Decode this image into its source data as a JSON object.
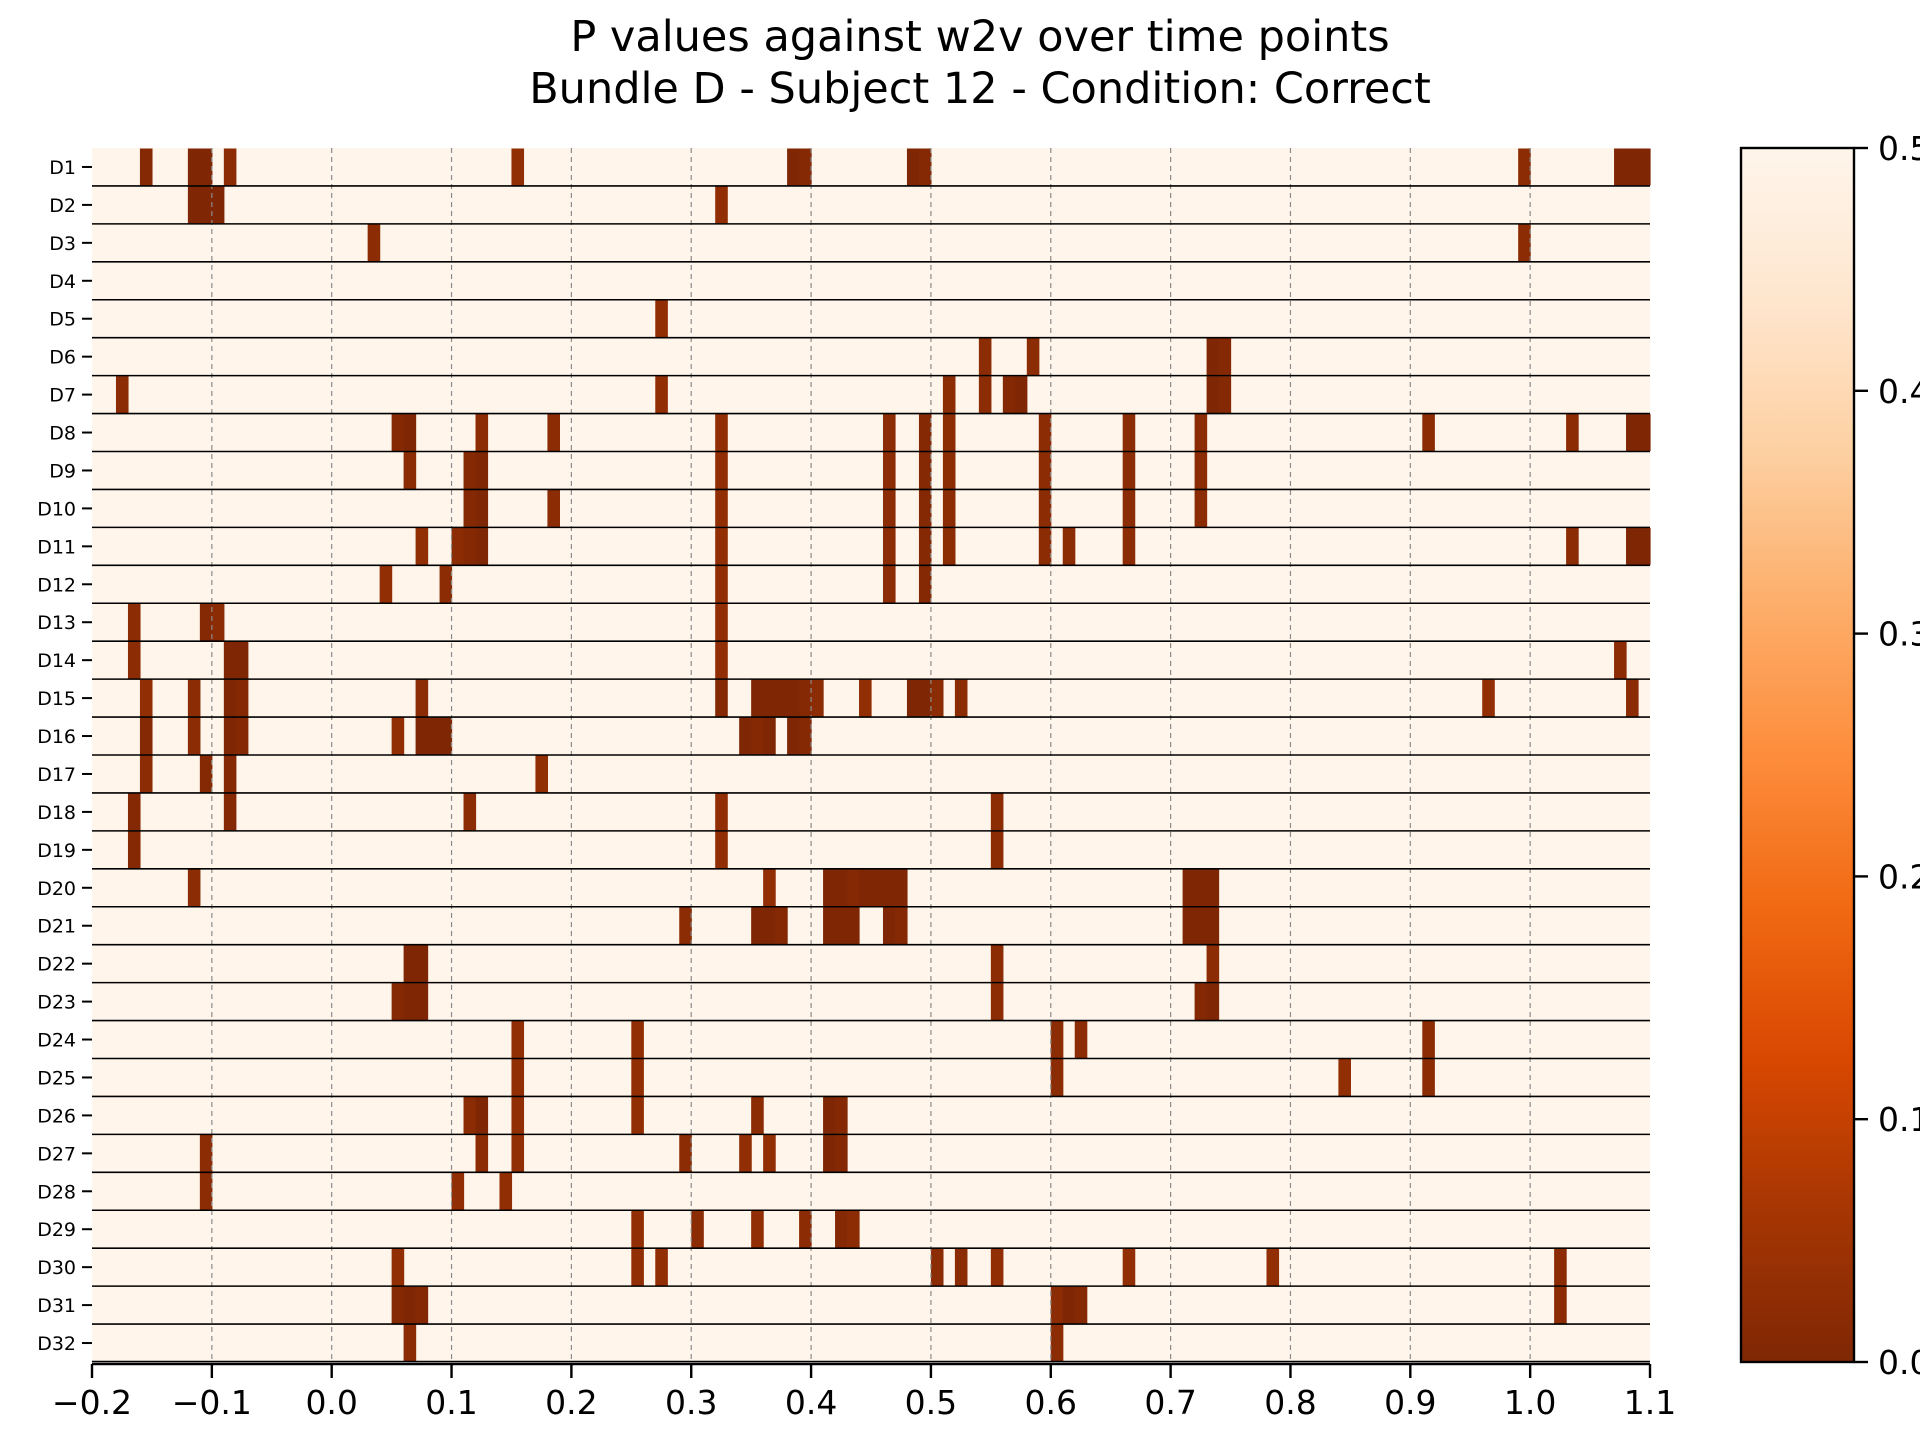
{
  "chart_data": {
    "type": "heatmap",
    "title": "P values against w2v over time points",
    "subtitle": "Bundle D - Subject 12 - Condition: Correct",
    "xlabel": "",
    "ylabel": "",
    "xlim": [
      -0.2,
      1.1
    ],
    "x_ticks": [
      "−0.2",
      "−0.1",
      "0.0",
      "0.1",
      "0.2",
      "0.3",
      "0.4",
      "0.5",
      "0.6",
      "0.7",
      "0.8",
      "0.9",
      "1.0",
      "1.1"
    ],
    "x_tick_values": [
      -0.2,
      -0.1,
      0.0,
      0.1,
      0.2,
      0.3,
      0.4,
      0.5,
      0.6,
      0.7,
      0.8,
      0.9,
      1.0,
      1.1
    ],
    "grid": "dashed vertical lines at x ticks",
    "colormap": {
      "name": "Oranges_r",
      "stops": [
        "#7f2704",
        "#a63603",
        "#d94801",
        "#f16913",
        "#fd8d3c",
        "#fdae6b",
        "#fdd0a2",
        "#fee6ce",
        "#fff5eb"
      ]
    },
    "background_value": 0.5,
    "colorbar": {
      "min": 0.0,
      "max": 0.5,
      "ticks": [
        "0.0",
        "0.1",
        "0.2",
        "0.3",
        "0.4",
        "0.5"
      ],
      "tick_values": [
        0.0,
        0.1,
        0.2,
        0.3,
        0.4,
        0.5
      ],
      "placement": "right"
    },
    "rows": [
      {
        "label": "D1",
        "cells": [
          [
            -0.16,
            0.01
          ],
          [
            -0.12,
            0.0
          ],
          [
            -0.11,
            0.0
          ],
          [
            -0.09,
            0.02
          ],
          [
            0.15,
            0.03
          ],
          [
            0.38,
            0.0
          ],
          [
            0.39,
            0.01
          ],
          [
            0.48,
            0.0
          ],
          [
            0.49,
            0.01
          ],
          [
            0.99,
            0.02
          ],
          [
            1.07,
            0.0
          ],
          [
            1.08,
            0.0
          ],
          [
            1.09,
            0.0
          ]
        ]
      },
      {
        "label": "D2",
        "cells": [
          [
            -0.12,
            0.0
          ],
          [
            -0.11,
            0.0
          ],
          [
            -0.1,
            0.0
          ],
          [
            0.32,
            0.03
          ]
        ]
      },
      {
        "label": "D3",
        "cells": [
          [
            0.03,
            0.02
          ],
          [
            0.99,
            0.02
          ]
        ]
      },
      {
        "label": "D4",
        "cells": []
      },
      {
        "label": "D5",
        "cells": [
          [
            0.27,
            0.03
          ]
        ]
      },
      {
        "label": "D6",
        "cells": [
          [
            0.54,
            0.02
          ],
          [
            0.58,
            0.02
          ],
          [
            0.73,
            0.0
          ],
          [
            0.74,
            0.01
          ]
        ]
      },
      {
        "label": "D7",
        "cells": [
          [
            -0.18,
            0.02
          ],
          [
            0.27,
            0.03
          ],
          [
            0.51,
            0.02
          ],
          [
            0.54,
            0.02
          ],
          [
            0.56,
            0.01
          ],
          [
            0.57,
            0.0
          ],
          [
            0.73,
            0.0
          ],
          [
            0.74,
            0.01
          ]
        ]
      },
      {
        "label": "D8",
        "cells": [
          [
            0.05,
            0.01
          ],
          [
            0.06,
            0.0
          ],
          [
            0.12,
            0.02
          ],
          [
            0.18,
            0.02
          ],
          [
            0.32,
            0.03
          ],
          [
            0.46,
            0.02
          ],
          [
            0.49,
            0.01
          ],
          [
            0.51,
            0.02
          ],
          [
            0.59,
            0.02
          ],
          [
            0.66,
            0.02
          ],
          [
            0.72,
            0.02
          ],
          [
            0.91,
            0.02
          ],
          [
            1.03,
            0.02
          ],
          [
            1.08,
            0.0
          ],
          [
            1.09,
            0.0
          ]
        ]
      },
      {
        "label": "D9",
        "cells": [
          [
            0.06,
            0.02
          ],
          [
            0.11,
            0.01
          ],
          [
            0.12,
            0.0
          ],
          [
            0.32,
            0.03
          ],
          [
            0.46,
            0.02
          ],
          [
            0.49,
            0.01
          ],
          [
            0.51,
            0.02
          ],
          [
            0.59,
            0.02
          ],
          [
            0.66,
            0.02
          ],
          [
            0.72,
            0.02
          ]
        ]
      },
      {
        "label": "D10",
        "cells": [
          [
            0.11,
            0.01
          ],
          [
            0.12,
            0.0
          ],
          [
            0.18,
            0.02
          ],
          [
            0.32,
            0.03
          ],
          [
            0.46,
            0.02
          ],
          [
            0.49,
            0.01
          ],
          [
            0.51,
            0.02
          ],
          [
            0.59,
            0.02
          ],
          [
            0.66,
            0.02
          ],
          [
            0.72,
            0.02
          ]
        ]
      },
      {
        "label": "D11",
        "cells": [
          [
            0.07,
            0.03
          ],
          [
            0.1,
            0.02
          ],
          [
            0.11,
            0.01
          ],
          [
            0.12,
            0.0
          ],
          [
            0.32,
            0.03
          ],
          [
            0.46,
            0.02
          ],
          [
            0.49,
            0.01
          ],
          [
            0.51,
            0.02
          ],
          [
            0.59,
            0.02
          ],
          [
            0.61,
            0.02
          ],
          [
            0.66,
            0.02
          ],
          [
            1.03,
            0.02
          ],
          [
            1.08,
            0.0
          ],
          [
            1.09,
            0.0
          ]
        ]
      },
      {
        "label": "D12",
        "cells": [
          [
            0.04,
            0.03
          ],
          [
            0.09,
            0.02
          ],
          [
            0.32,
            0.03
          ],
          [
            0.46,
            0.02
          ],
          [
            0.49,
            0.01
          ]
        ]
      },
      {
        "label": "D13",
        "cells": [
          [
            -0.17,
            0.02
          ],
          [
            -0.11,
            0.01
          ],
          [
            -0.1,
            0.02
          ],
          [
            0.32,
            0.03
          ]
        ]
      },
      {
        "label": "D14",
        "cells": [
          [
            -0.17,
            0.02
          ],
          [
            -0.09,
            0.0
          ],
          [
            -0.08,
            0.0
          ],
          [
            0.32,
            0.03
          ],
          [
            1.07,
            0.02
          ]
        ]
      },
      {
        "label": "D15",
        "cells": [
          [
            -0.16,
            0.03
          ],
          [
            -0.12,
            0.02
          ],
          [
            -0.09,
            0.0
          ],
          [
            -0.08,
            0.01
          ],
          [
            0.07,
            0.02
          ],
          [
            0.32,
            0.01
          ],
          [
            0.35,
            0.0
          ],
          [
            0.36,
            0.0
          ],
          [
            0.37,
            0.0
          ],
          [
            0.38,
            0.0
          ],
          [
            0.39,
            0.01
          ],
          [
            0.4,
            0.02
          ],
          [
            0.44,
            0.03
          ],
          [
            0.48,
            0.0
          ],
          [
            0.49,
            0.0
          ],
          [
            0.5,
            0.02
          ],
          [
            0.52,
            0.02
          ],
          [
            0.96,
            0.03
          ],
          [
            1.08,
            0.02
          ]
        ]
      },
      {
        "label": "D16",
        "cells": [
          [
            -0.16,
            0.01
          ],
          [
            -0.12,
            0.02
          ],
          [
            -0.09,
            0.0
          ],
          [
            -0.08,
            0.01
          ],
          [
            0.05,
            0.03
          ],
          [
            0.07,
            0.0
          ],
          [
            0.08,
            0.0
          ],
          [
            0.09,
            0.0
          ],
          [
            0.34,
            0.0
          ],
          [
            0.35,
            0.01
          ],
          [
            0.36,
            0.0
          ],
          [
            0.38,
            0.0
          ],
          [
            0.39,
            0.01
          ]
        ]
      },
      {
        "label": "D17",
        "cells": [
          [
            -0.16,
            0.02
          ],
          [
            -0.11,
            0.01
          ],
          [
            -0.09,
            0.01
          ],
          [
            0.17,
            0.03
          ]
        ]
      },
      {
        "label": "D18",
        "cells": [
          [
            -0.17,
            0.01
          ],
          [
            -0.09,
            0.01
          ],
          [
            0.11,
            0.02
          ],
          [
            0.32,
            0.03
          ],
          [
            0.55,
            0.02
          ]
        ]
      },
      {
        "label": "D19",
        "cells": [
          [
            -0.17,
            0.01
          ],
          [
            0.32,
            0.03
          ],
          [
            0.55,
            0.02
          ]
        ]
      },
      {
        "label": "D20",
        "cells": [
          [
            -0.12,
            0.02
          ],
          [
            0.36,
            0.03
          ],
          [
            0.41,
            0.0
          ],
          [
            0.42,
            0.0
          ],
          [
            0.43,
            0.01
          ],
          [
            0.44,
            0.0
          ],
          [
            0.45,
            0.0
          ],
          [
            0.46,
            0.0
          ],
          [
            0.47,
            0.0
          ],
          [
            0.71,
            0.0
          ],
          [
            0.72,
            0.0
          ],
          [
            0.73,
            0.0
          ]
        ]
      },
      {
        "label": "D21",
        "cells": [
          [
            0.29,
            0.02
          ],
          [
            0.35,
            0.0
          ],
          [
            0.36,
            0.0
          ],
          [
            0.37,
            0.01
          ],
          [
            0.41,
            0.0
          ],
          [
            0.42,
            0.0
          ],
          [
            0.43,
            0.0
          ],
          [
            0.46,
            0.0
          ],
          [
            0.47,
            0.01
          ],
          [
            0.71,
            0.0
          ],
          [
            0.72,
            0.0
          ],
          [
            0.73,
            0.0
          ]
        ]
      },
      {
        "label": "D22",
        "cells": [
          [
            0.06,
            0.0
          ],
          [
            0.07,
            0.0
          ],
          [
            0.55,
            0.02
          ],
          [
            0.73,
            0.02
          ]
        ]
      },
      {
        "label": "D23",
        "cells": [
          [
            0.05,
            0.01
          ],
          [
            0.06,
            0.0
          ],
          [
            0.07,
            0.0
          ],
          [
            0.55,
            0.02
          ],
          [
            0.72,
            0.01
          ],
          [
            0.73,
            0.0
          ]
        ]
      },
      {
        "label": "D24",
        "cells": [
          [
            0.15,
            0.03
          ],
          [
            0.25,
            0.03
          ],
          [
            0.6,
            0.02
          ],
          [
            0.62,
            0.02
          ],
          [
            0.91,
            0.02
          ]
        ]
      },
      {
        "label": "D25",
        "cells": [
          [
            0.15,
            0.03
          ],
          [
            0.25,
            0.03
          ],
          [
            0.6,
            0.02
          ],
          [
            0.84,
            0.03
          ],
          [
            0.91,
            0.02
          ]
        ]
      },
      {
        "label": "D26",
        "cells": [
          [
            0.11,
            0.02
          ],
          [
            0.12,
            0.0
          ],
          [
            0.15,
            0.03
          ],
          [
            0.25,
            0.03
          ],
          [
            0.35,
            0.02
          ],
          [
            0.41,
            0.0
          ],
          [
            0.42,
            0.01
          ]
        ]
      },
      {
        "label": "D27",
        "cells": [
          [
            -0.11,
            0.02
          ],
          [
            0.12,
            0.02
          ],
          [
            0.15,
            0.03
          ],
          [
            0.29,
            0.02
          ],
          [
            0.34,
            0.03
          ],
          [
            0.36,
            0.03
          ],
          [
            0.41,
            0.0
          ],
          [
            0.42,
            0.01
          ]
        ]
      },
      {
        "label": "D28",
        "cells": [
          [
            -0.11,
            0.02
          ],
          [
            0.1,
            0.03
          ],
          [
            0.14,
            0.03
          ]
        ]
      },
      {
        "label": "D29",
        "cells": [
          [
            0.25,
            0.03
          ],
          [
            0.3,
            0.02
          ],
          [
            0.35,
            0.03
          ],
          [
            0.39,
            0.02
          ],
          [
            0.42,
            0.01
          ],
          [
            0.43,
            0.02
          ]
        ]
      },
      {
        "label": "D30",
        "cells": [
          [
            0.05,
            0.03
          ],
          [
            0.25,
            0.03
          ],
          [
            0.27,
            0.03
          ],
          [
            0.5,
            0.02
          ],
          [
            0.52,
            0.02
          ],
          [
            0.55,
            0.03
          ],
          [
            0.66,
            0.03
          ],
          [
            0.78,
            0.03
          ],
          [
            1.02,
            0.02
          ]
        ]
      },
      {
        "label": "D31",
        "cells": [
          [
            0.05,
            0.01
          ],
          [
            0.06,
            0.0
          ],
          [
            0.07,
            0.01
          ],
          [
            0.6,
            0.02
          ],
          [
            0.61,
            0.0
          ],
          [
            0.62,
            0.01
          ],
          [
            1.02,
            0.02
          ]
        ]
      },
      {
        "label": "D32",
        "cells": [
          [
            0.06,
            0.02
          ],
          [
            0.6,
            0.02
          ]
        ]
      }
    ]
  }
}
